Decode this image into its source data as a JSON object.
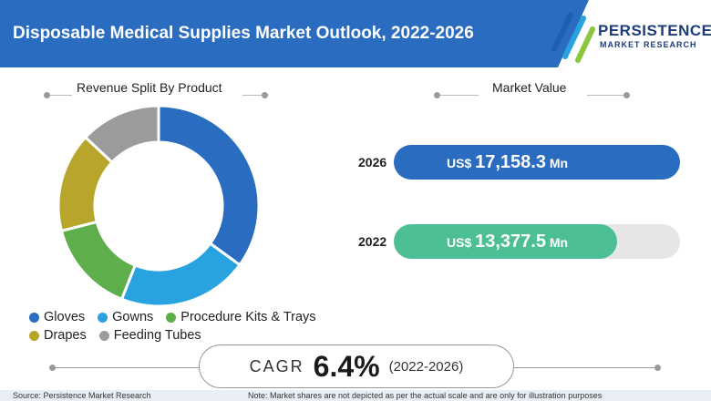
{
  "header": {
    "title": "Disposable Medical Supplies Market Outlook, 2022-2026",
    "logo_line1": "PERSISTENCE",
    "logo_line2": "MARKET RESEARCH"
  },
  "colors": {
    "header": "#2a6cc0",
    "gloves": "#2a6cc0",
    "gowns": "#29a3e0",
    "procedure_kits": "#5eaf4b",
    "drapes": "#b7a62b",
    "feeding_tubes": "#9b9b9b",
    "bar_2026": "#2a6cc0",
    "bar_2022": "#4cbf95"
  },
  "chart_data": [
    {
      "type": "pie",
      "title": "Revenue Split By Product",
      "categories": [
        "Gloves",
        "Gowns",
        "Procedure Kits & Trays",
        "Drapes",
        "Feeding Tubes"
      ],
      "values": [
        35,
        21,
        15,
        16,
        13
      ],
      "legend": "bottom"
    },
    {
      "type": "bar",
      "title": "Market Value",
      "categories": [
        "2026",
        "2022"
      ],
      "values": [
        17158.3,
        13377.5
      ],
      "value_labels": [
        "17,158.3",
        "13,377.5"
      ],
      "unit_prefix": "US$",
      "unit_suffix": "Mn",
      "xlim": [
        0,
        17158.3
      ]
    }
  ],
  "cagr": {
    "label": "CAGR",
    "value": "6.4%",
    "period": "(2022-2026)"
  },
  "footer": {
    "source": "Source: Persistence Market Research",
    "note": "Note: Market shares are not depicted as per the actual scale and are only for illustration purposes"
  }
}
